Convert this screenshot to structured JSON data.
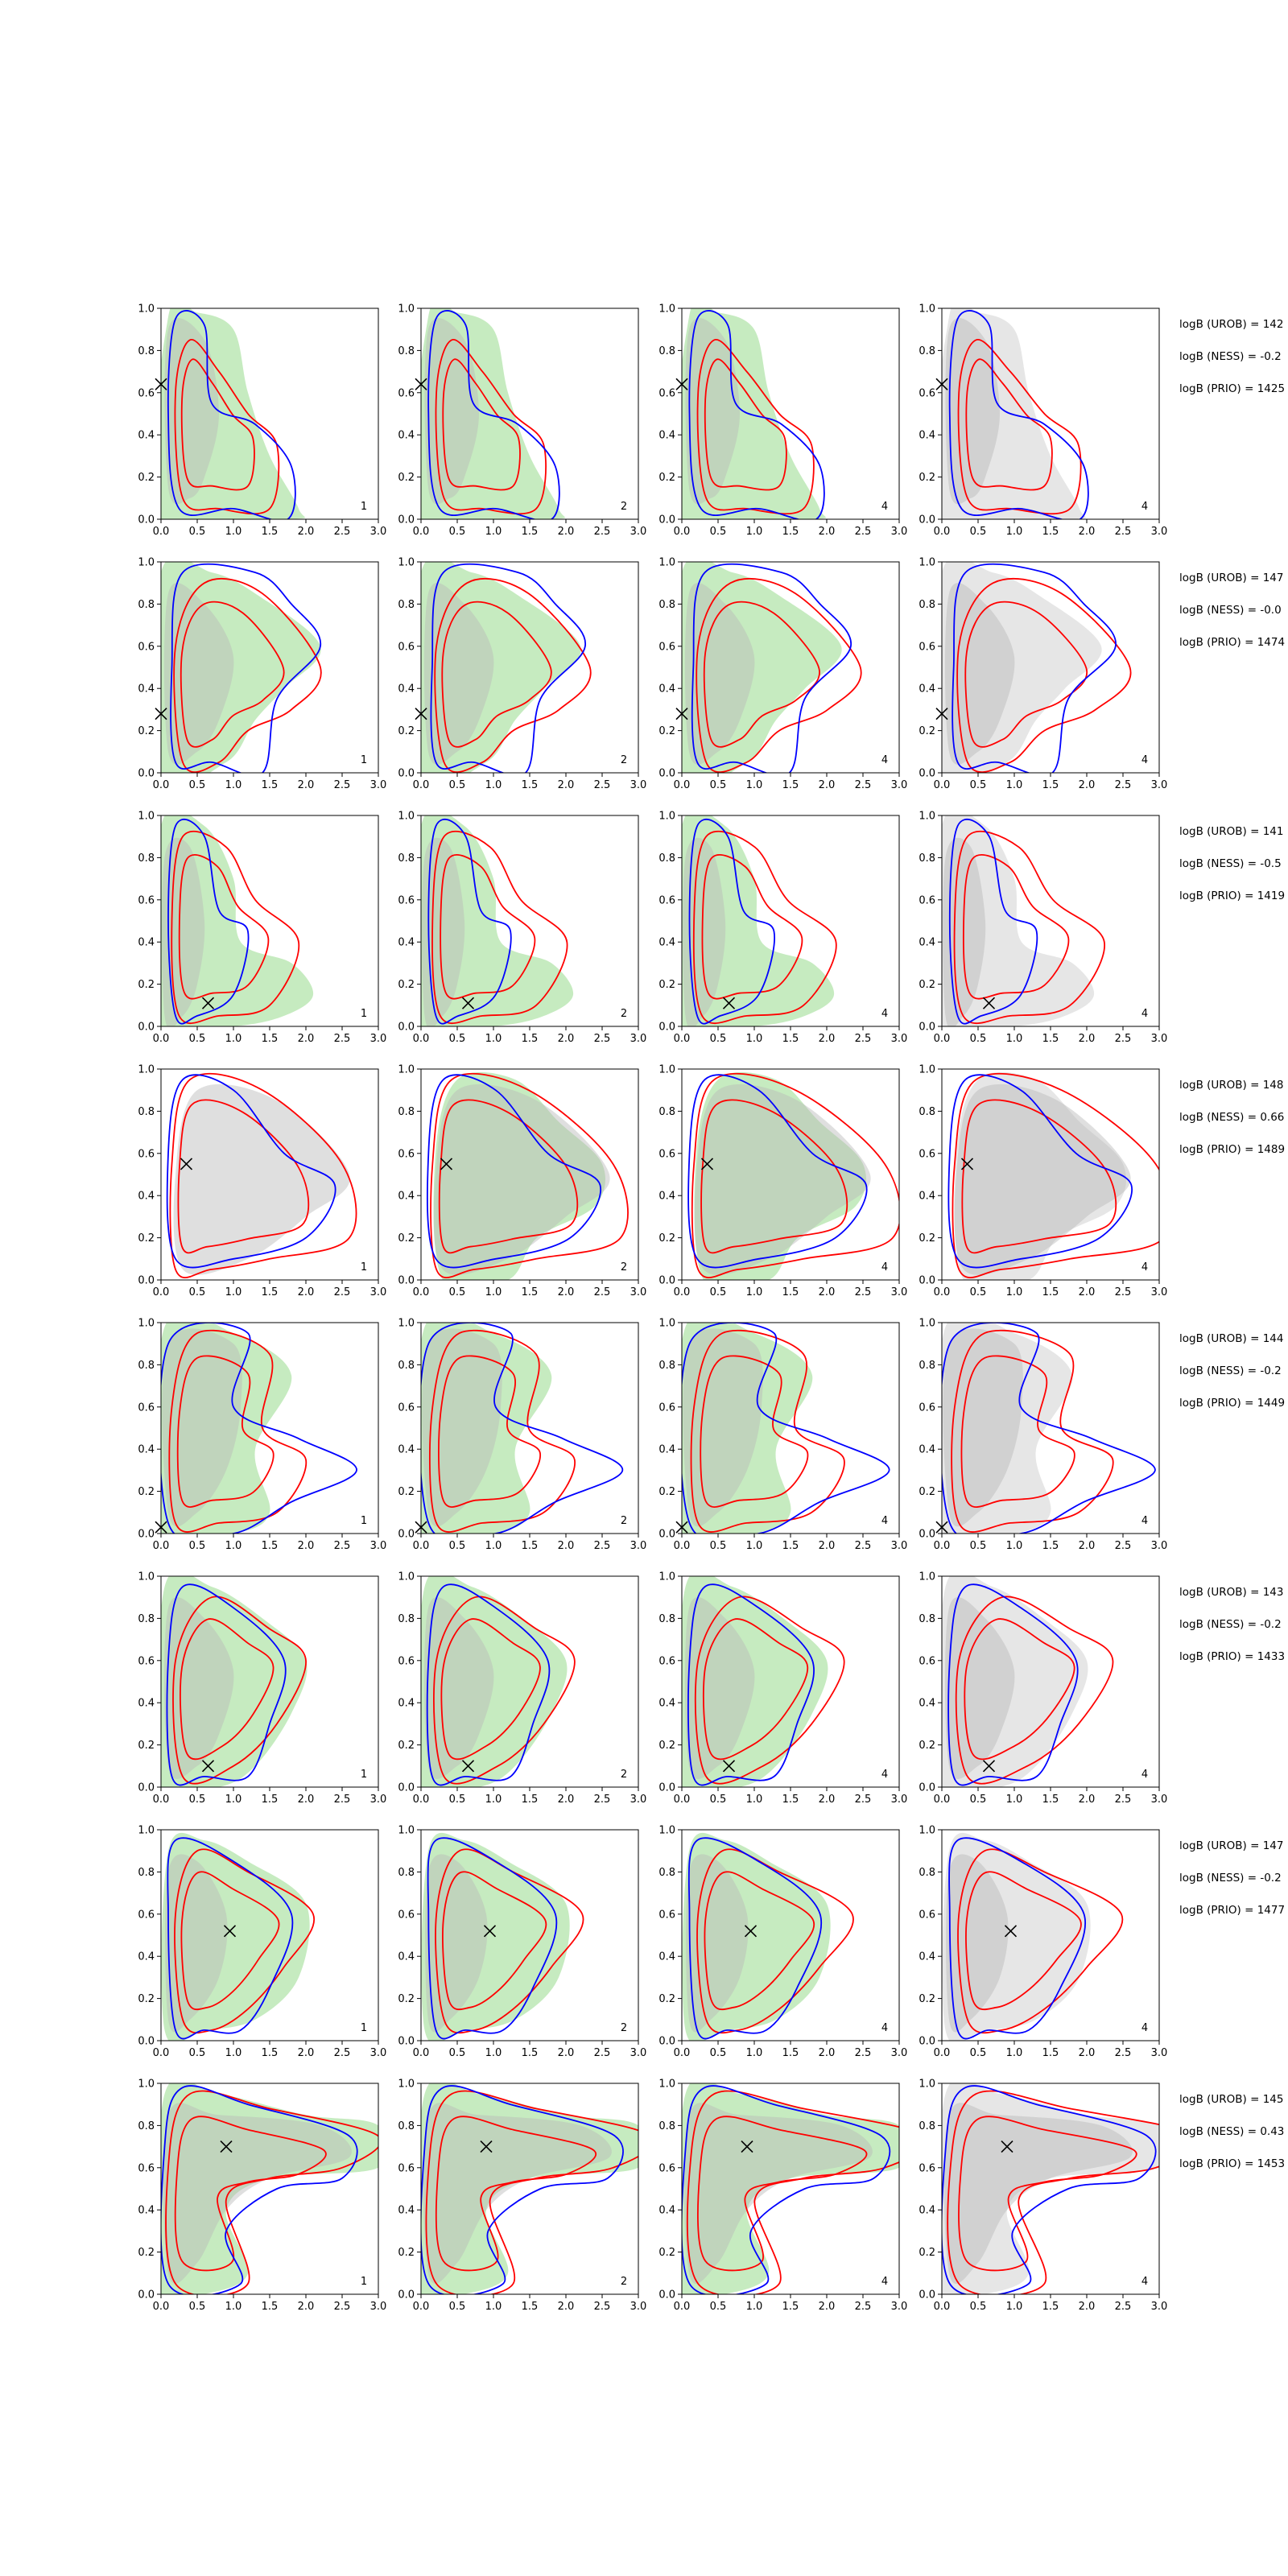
{
  "chart_data": {
    "type": "contour-grid",
    "rows": 8,
    "cols": 4,
    "xlim": [
      0.0,
      3.0
    ],
    "ylim": [
      0.0,
      1.0
    ],
    "x_tick_labels": [
      "0.0",
      "0.5",
      "1.0",
      "1.5",
      "2.0",
      "2.5",
      "3.0"
    ],
    "y_tick_labels": [
      "0.0",
      "0.2",
      "0.4",
      "0.6",
      "0.8",
      "1.0"
    ],
    "colors": {
      "true_fill": "#b8e6b0",
      "prior_fill": "#b8b8b8",
      "urob": "#0000ff",
      "ness": "#ff0000",
      "marker": "#000000"
    },
    "panel_numbers": [
      "1",
      "2",
      "4",
      "4"
    ],
    "row_markers": [
      {
        "x": 0.0,
        "y": 0.64
      },
      {
        "x": 0.0,
        "y": 0.28
      },
      {
        "x": 0.65,
        "y": 0.11
      },
      {
        "x": 0.35,
        "y": 0.55
      },
      {
        "x": 0.0,
        "y": 0.03
      },
      {
        "x": 0.65,
        "y": 0.1
      },
      {
        "x": 0.95,
        "y": 0.52
      },
      {
        "x": 0.9,
        "y": 0.7
      }
    ],
    "logB": [
      {
        "urob": "logB (UROB) = 142",
        "ness": "logB (NESS) = -0.2",
        "prio": "logB (PRIO) = 1425"
      },
      {
        "urob": "logB (UROB) = 147",
        "ness": "logB (NESS) = -0.0",
        "prio": "logB (PRIO) = 1474"
      },
      {
        "urob": "logB (UROB) = 141",
        "ness": "logB (NESS) = -0.5",
        "prio": "logB (PRIO) = 1419"
      },
      {
        "urob": "logB (UROB) = 148",
        "ness": "logB (NESS) = 0.66",
        "prio": "logB (PRIO) = 1489"
      },
      {
        "urob": "logB (UROB) = 144",
        "ness": "logB (NESS) = -0.2",
        "prio": "logB (PRIO) = 1449"
      },
      {
        "urob": "logB (UROB) = 143",
        "ness": "logB (NESS) = -0.2",
        "prio": "logB (PRIO) = 1433"
      },
      {
        "urob": "logB (UROB) = 147",
        "ness": "logB (NESS) = -0.2",
        "prio": "logB (PRIO) = 1477"
      },
      {
        "urob": "logB (UROB) = 145",
        "ness": "logB (NESS) = 0.43",
        "prio": "logB (PRIO) = 1453"
      }
    ],
    "contours": [
      {
        "green": [
          [
            0.0,
            0.0
          ],
          [
            0.1,
            0.96
          ],
          [
            0.5,
            0.98
          ],
          [
            1.0,
            0.9
          ],
          [
            1.2,
            0.6
          ],
          [
            1.5,
            0.3
          ],
          [
            1.9,
            0.05
          ],
          [
            1.8,
            0.0
          ]
        ],
        "grey": [
          [
            0.1,
            0.15
          ],
          [
            0.1,
            0.9
          ],
          [
            0.6,
            0.85
          ],
          [
            0.8,
            0.5
          ],
          [
            0.6,
            0.2
          ],
          [
            0.4,
            0.1
          ]
        ],
        "blue": [
          [
            0.25,
            0.05
          ],
          [
            0.1,
            0.5
          ],
          [
            0.2,
            0.95
          ],
          [
            0.6,
            0.92
          ],
          [
            0.7,
            0.55
          ],
          [
            1.3,
            0.45
          ],
          [
            1.8,
            0.25
          ],
          [
            1.75,
            0.0
          ],
          [
            1.0,
            0.05
          ]
        ],
        "red": [
          [
            0.3,
            0.1
          ],
          [
            0.2,
            0.6
          ],
          [
            0.4,
            0.85
          ],
          [
            0.8,
            0.7
          ],
          [
            1.2,
            0.5
          ],
          [
            1.6,
            0.35
          ],
          [
            1.5,
            0.05
          ],
          [
            0.8,
            0.05
          ]
        ]
      },
      {
        "green": [
          [
            0.0,
            0.0
          ],
          [
            0.0,
            0.95
          ],
          [
            0.7,
            0.95
          ],
          [
            1.3,
            0.85
          ],
          [
            2.2,
            0.6
          ],
          [
            1.7,
            0.4
          ],
          [
            1.3,
            0.25
          ],
          [
            0.9,
            0.05
          ]
        ],
        "grey": [
          [
            0.1,
            0.1
          ],
          [
            0.1,
            0.85
          ],
          [
            0.6,
            0.8
          ],
          [
            1.0,
            0.55
          ],
          [
            0.8,
            0.25
          ],
          [
            0.5,
            0.1
          ]
        ],
        "blue": [
          [
            0.2,
            0.05
          ],
          [
            0.15,
            0.5
          ],
          [
            0.3,
            0.95
          ],
          [
            1.3,
            0.95
          ],
          [
            1.8,
            0.8
          ],
          [
            2.2,
            0.6
          ],
          [
            1.6,
            0.35
          ],
          [
            1.4,
            0.0
          ],
          [
            0.7,
            0.05
          ]
        ],
        "red": [
          [
            0.3,
            0.05
          ],
          [
            0.2,
            0.6
          ],
          [
            0.6,
            0.9
          ],
          [
            1.4,
            0.85
          ],
          [
            2.2,
            0.5
          ],
          [
            1.8,
            0.3
          ],
          [
            1.2,
            0.2
          ],
          [
            0.8,
            0.05
          ]
        ]
      },
      {
        "green": [
          [
            0.0,
            0.0
          ],
          [
            0.0,
            0.95
          ],
          [
            0.6,
            0.95
          ],
          [
            1.0,
            0.7
          ],
          [
            1.1,
            0.4
          ],
          [
            1.8,
            0.3
          ],
          [
            2.1,
            0.15
          ],
          [
            1.7,
            0.05
          ],
          [
            1.0,
            0.0
          ]
        ],
        "grey": [
          [
            0.05,
            0.05
          ],
          [
            0.05,
            0.8
          ],
          [
            0.4,
            0.85
          ],
          [
            0.6,
            0.5
          ],
          [
            0.5,
            0.2
          ],
          [
            0.3,
            0.05
          ]
        ],
        "blue": [
          [
            0.2,
            0.05
          ],
          [
            0.1,
            0.5
          ],
          [
            0.2,
            0.95
          ],
          [
            0.6,
            0.9
          ],
          [
            0.8,
            0.55
          ],
          [
            1.2,
            0.45
          ],
          [
            1.0,
            0.15
          ],
          [
            0.5,
            0.05
          ]
        ],
        "red": [
          [
            0.25,
            0.05
          ],
          [
            0.15,
            0.5
          ],
          [
            0.3,
            0.9
          ],
          [
            0.9,
            0.85
          ],
          [
            1.3,
            0.6
          ],
          [
            1.9,
            0.4
          ],
          [
            1.5,
            0.1
          ],
          [
            0.8,
            0.05
          ]
        ]
      },
      {
        "green": [
          [
            0.3,
            0.0
          ],
          [
            0.2,
            0.6
          ],
          [
            0.5,
            0.95
          ],
          [
            1.3,
            0.95
          ],
          [
            1.9,
            0.75
          ],
          [
            2.5,
            0.55
          ],
          [
            2.4,
            0.35
          ],
          [
            1.6,
            0.2
          ],
          [
            1.2,
            0.0
          ]
        ],
        "grey": [
          [
            0.3,
            0.05
          ],
          [
            0.2,
            0.5
          ],
          [
            0.5,
            0.9
          ],
          [
            1.6,
            0.85
          ],
          [
            2.6,
            0.5
          ],
          [
            2.0,
            0.3
          ],
          [
            1.2,
            0.1
          ]
        ],
        "blue": [
          [
            0.2,
            0.1
          ],
          [
            0.1,
            0.6
          ],
          [
            0.3,
            0.95
          ],
          [
            1.0,
            0.9
          ],
          [
            1.7,
            0.6
          ],
          [
            2.4,
            0.45
          ],
          [
            2.0,
            0.2
          ],
          [
            1.0,
            0.1
          ]
        ],
        "red": [
          [
            0.2,
            0.05
          ],
          [
            0.15,
            0.55
          ],
          [
            0.4,
            0.95
          ],
          [
            1.4,
            0.9
          ],
          [
            2.5,
            0.55
          ],
          [
            2.6,
            0.2
          ],
          [
            1.5,
            0.1
          ],
          [
            0.7,
            0.05
          ]
        ]
      },
      {
        "green": [
          [
            0.0,
            0.0
          ],
          [
            0.05,
            0.98
          ],
          [
            1.0,
            0.95
          ],
          [
            1.8,
            0.75
          ],
          [
            1.3,
            0.4
          ],
          [
            1.5,
            0.1
          ],
          [
            1.0,
            0.0
          ]
        ],
        "grey": [
          [
            0.1,
            0.1
          ],
          [
            0.1,
            0.9
          ],
          [
            1.0,
            0.9
          ],
          [
            1.1,
            0.6
          ],
          [
            0.9,
            0.3
          ],
          [
            0.5,
            0.1
          ]
        ],
        "blue": [
          [
            0.1,
            0.05
          ],
          [
            0.1,
            0.9
          ],
          [
            1.2,
            0.95
          ],
          [
            1.0,
            0.6
          ],
          [
            1.9,
            0.45
          ],
          [
            2.7,
            0.3
          ],
          [
            1.8,
            0.15
          ],
          [
            1.0,
            0.0
          ]
        ],
        "red": [
          [
            0.2,
            0.05
          ],
          [
            0.15,
            0.6
          ],
          [
            0.5,
            0.95
          ],
          [
            1.5,
            0.85
          ],
          [
            1.4,
            0.5
          ],
          [
            2.0,
            0.35
          ],
          [
            1.6,
            0.1
          ],
          [
            0.8,
            0.05
          ]
        ]
      },
      {
        "green": [
          [
            0.0,
            0.0
          ],
          [
            0.05,
            0.95
          ],
          [
            0.7,
            0.95
          ],
          [
            1.4,
            0.8
          ],
          [
            2.0,
            0.6
          ],
          [
            1.8,
            0.35
          ],
          [
            1.3,
            0.1
          ],
          [
            0.8,
            0.0
          ]
        ],
        "grey": [
          [
            0.1,
            0.1
          ],
          [
            0.1,
            0.85
          ],
          [
            0.6,
            0.8
          ],
          [
            1.0,
            0.55
          ],
          [
            0.8,
            0.25
          ],
          [
            0.5,
            0.1
          ]
        ],
        "blue": [
          [
            0.15,
            0.05
          ],
          [
            0.1,
            0.6
          ],
          [
            0.3,
            0.95
          ],
          [
            1.0,
            0.85
          ],
          [
            1.7,
            0.6
          ],
          [
            1.5,
            0.3
          ],
          [
            1.2,
            0.05
          ],
          [
            0.6,
            0.05
          ]
        ],
        "red": [
          [
            0.3,
            0.05
          ],
          [
            0.2,
            0.6
          ],
          [
            0.7,
            0.9
          ],
          [
            1.5,
            0.75
          ],
          [
            2.0,
            0.6
          ],
          [
            1.6,
            0.3
          ],
          [
            1.0,
            0.1
          ]
        ]
      },
      {
        "green": [
          [
            0.05,
            0.05
          ],
          [
            0.1,
            0.9
          ],
          [
            0.6,
            0.95
          ],
          [
            1.2,
            0.85
          ],
          [
            2.0,
            0.65
          ],
          [
            1.9,
            0.3
          ],
          [
            1.3,
            0.1
          ],
          [
            0.6,
            0.05
          ]
        ],
        "grey": [
          [
            0.1,
            0.1
          ],
          [
            0.1,
            0.8
          ],
          [
            0.5,
            0.85
          ],
          [
            0.9,
            0.6
          ],
          [
            0.8,
            0.3
          ],
          [
            0.4,
            0.1
          ]
        ],
        "blue": [
          [
            0.2,
            0.05
          ],
          [
            0.1,
            0.6
          ],
          [
            0.2,
            0.95
          ],
          [
            1.0,
            0.85
          ],
          [
            1.8,
            0.6
          ],
          [
            1.5,
            0.25
          ],
          [
            1.1,
            0.05
          ],
          [
            0.6,
            0.05
          ]
        ],
        "red": [
          [
            0.3,
            0.1
          ],
          [
            0.2,
            0.6
          ],
          [
            0.5,
            0.9
          ],
          [
            1.2,
            0.8
          ],
          [
            2.1,
            0.6
          ],
          [
            1.7,
            0.35
          ],
          [
            1.2,
            0.15
          ],
          [
            0.7,
            0.05
          ]
        ]
      },
      {
        "green": [
          [
            0.0,
            0.0
          ],
          [
            0.05,
            0.95
          ],
          [
            0.8,
            0.95
          ],
          [
            2.0,
            0.85
          ],
          [
            3.0,
            0.8
          ],
          [
            3.0,
            0.6
          ],
          [
            1.5,
            0.55
          ],
          [
            0.9,
            0.4
          ],
          [
            1.2,
            0.1
          ],
          [
            0.6,
            0.0
          ]
        ],
        "grey": [
          [
            0.1,
            0.1
          ],
          [
            0.1,
            0.85
          ],
          [
            0.8,
            0.85
          ],
          [
            2.2,
            0.8
          ],
          [
            2.6,
            0.65
          ],
          [
            1.5,
            0.55
          ],
          [
            0.9,
            0.4
          ],
          [
            0.5,
            0.15
          ]
        ],
        "blue": [
          [
            0.1,
            0.05
          ],
          [
            0.05,
            0.7
          ],
          [
            0.3,
            0.98
          ],
          [
            1.2,
            0.9
          ],
          [
            2.6,
            0.75
          ],
          [
            2.5,
            0.55
          ],
          [
            1.6,
            0.5
          ],
          [
            0.9,
            0.3
          ],
          [
            1.1,
            0.05
          ]
        ],
        "red": [
          [
            0.2,
            0.05
          ],
          [
            0.1,
            0.6
          ],
          [
            0.4,
            0.95
          ],
          [
            1.5,
            0.88
          ],
          [
            3.0,
            0.75
          ],
          [
            2.5,
            0.6
          ],
          [
            1.5,
            0.55
          ],
          [
            0.9,
            0.45
          ],
          [
            1.2,
            0.05
          ]
        ]
      }
    ]
  }
}
